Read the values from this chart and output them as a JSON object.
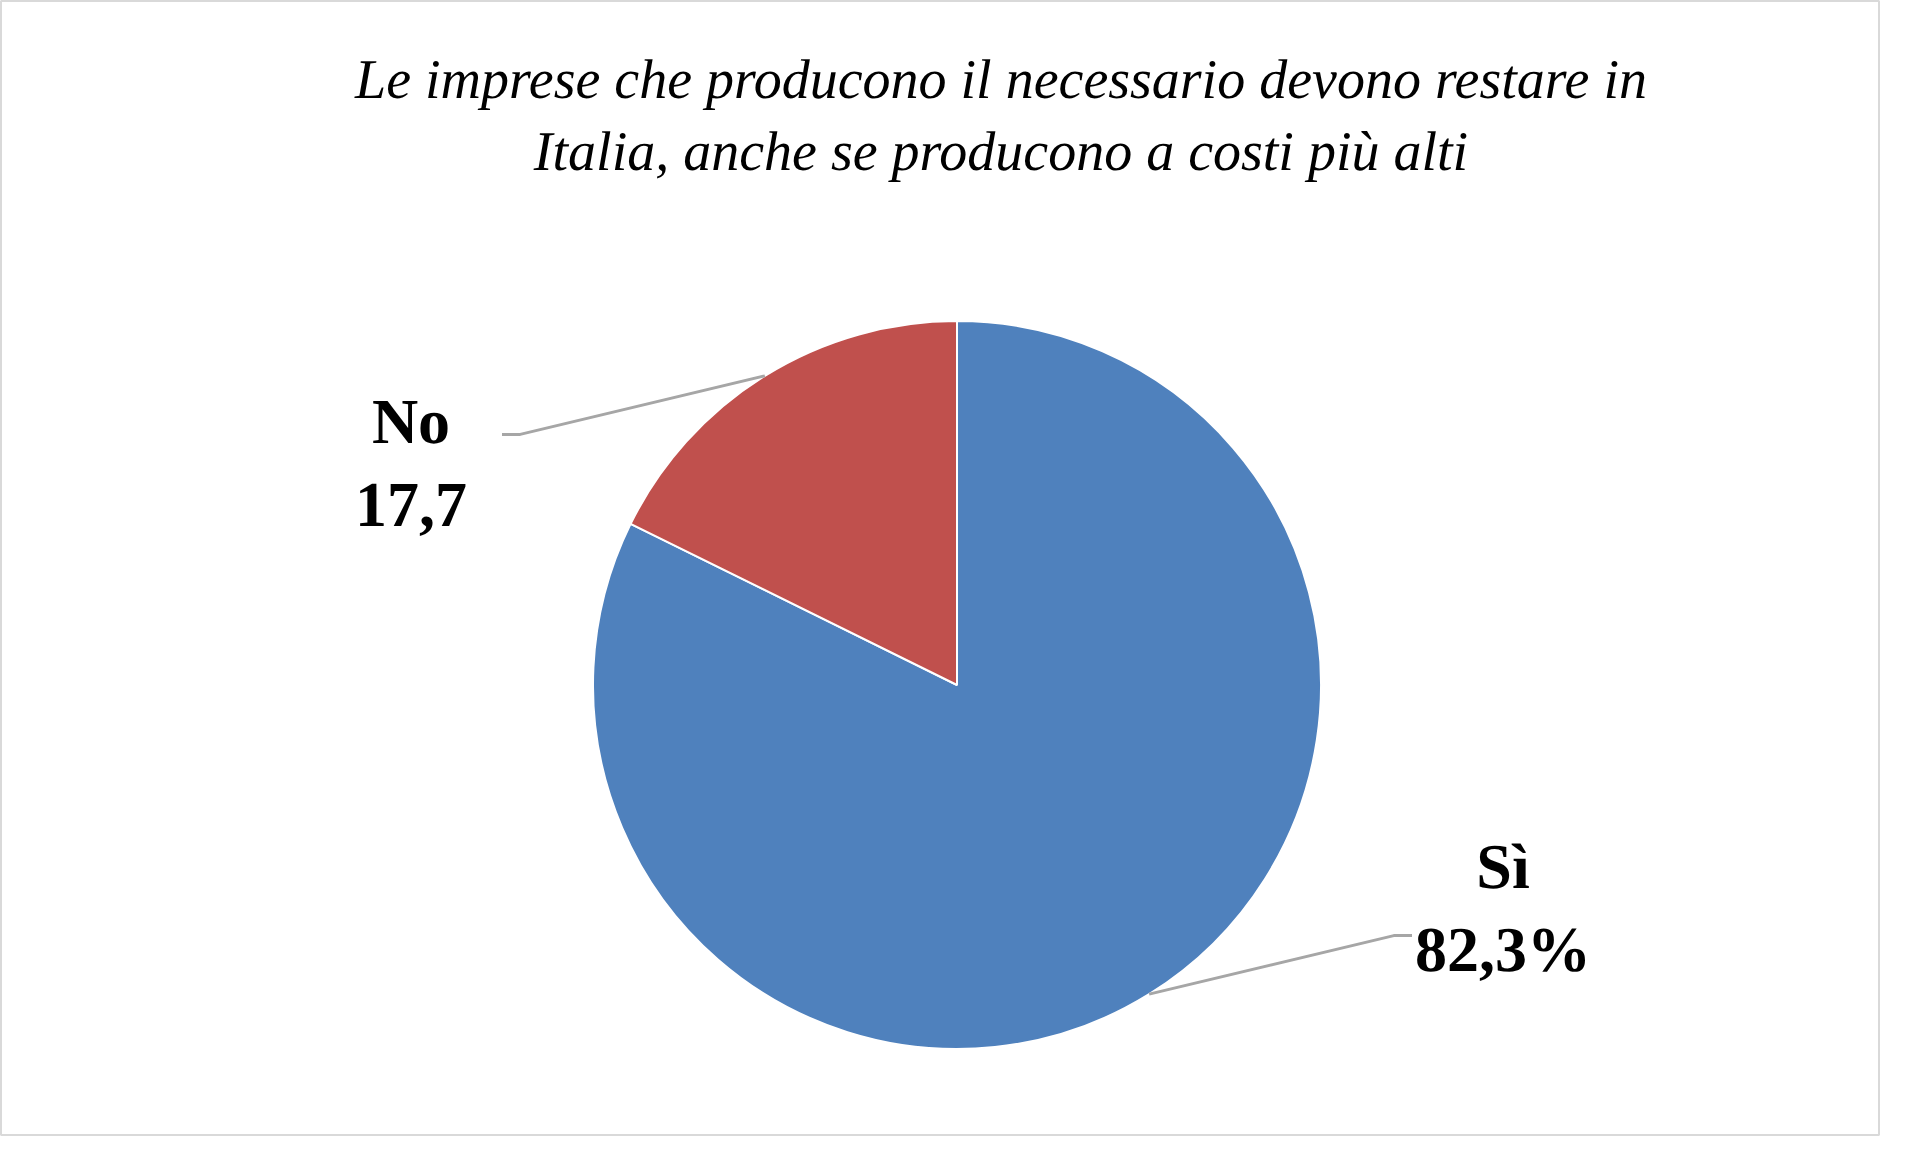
{
  "chart_data": {
    "type": "pie",
    "title": "Le imprese che producono il necessario devono restare in\nItalia, anche se producono a costi più alti",
    "categories": [
      "Sì",
      "No"
    ],
    "values": [
      82.3,
      17.7
    ],
    "colors": [
      "#4f81bd",
      "#c0504d"
    ],
    "value_labels": [
      "82,3%",
      "17,7"
    ]
  }
}
